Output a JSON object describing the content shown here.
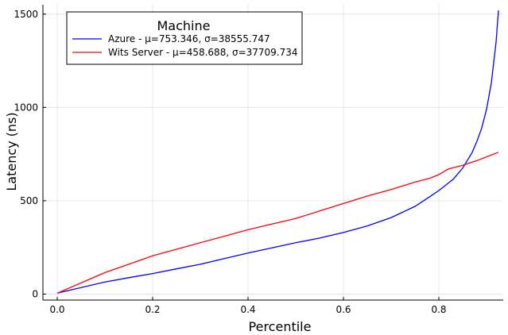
{
  "chart_data": {
    "type": "line",
    "title": "",
    "xlabel": "Percentile",
    "ylabel": "Latency (ns)",
    "xlim": [
      -0.03,
      0.935
    ],
    "ylim": [
      -32,
      1550
    ],
    "xticks": [
      0.0,
      0.2,
      0.4,
      0.6,
      0.8
    ],
    "xtick_labels": [
      "0.0",
      "0.2",
      "0.4",
      "0.6",
      "0.8"
    ],
    "yticks": [
      0,
      500,
      1000,
      1500
    ],
    "ytick_labels": [
      "0",
      "500",
      "1000",
      "1500"
    ],
    "grid": true,
    "legend": {
      "title": "Machine",
      "position": "top-left",
      "entries": [
        "Azure - μ=753.346, σ=38555.747",
        "Wits Server - μ=458.688, σ=37709.734"
      ]
    },
    "series": [
      {
        "name": "Azure - μ=753.346, σ=38555.747",
        "color": "#0000ff",
        "x": [
          0.0,
          0.05,
          0.1,
          0.15,
          0.2,
          0.25,
          0.3,
          0.35,
          0.4,
          0.45,
          0.5,
          0.55,
          0.6,
          0.65,
          0.7,
          0.75,
          0.78,
          0.8,
          0.83,
          0.85,
          0.87,
          0.88,
          0.89,
          0.9,
          0.91,
          0.92,
          0.925
        ],
        "y": [
          5,
          35,
          65,
          88,
          110,
          135,
          160,
          190,
          220,
          248,
          275,
          300,
          330,
          365,
          410,
          470,
          520,
          555,
          615,
          675,
          760,
          820,
          890,
          990,
          1130,
          1350,
          1520
        ]
      },
      {
        "name": "Wits Server - μ=458.688, σ=37709.734",
        "color": "#ff0000",
        "x": [
          0.0,
          0.05,
          0.1,
          0.15,
          0.2,
          0.25,
          0.3,
          0.35,
          0.4,
          0.45,
          0.5,
          0.55,
          0.6,
          0.65,
          0.7,
          0.75,
          0.78,
          0.8,
          0.82,
          0.85,
          0.88,
          0.9,
          0.925
        ],
        "y": [
          5,
          60,
          115,
          160,
          205,
          240,
          275,
          310,
          345,
          375,
          405,
          445,
          485,
          525,
          560,
          600,
          620,
          640,
          670,
          690,
          715,
          735,
          760
        ]
      }
    ]
  }
}
